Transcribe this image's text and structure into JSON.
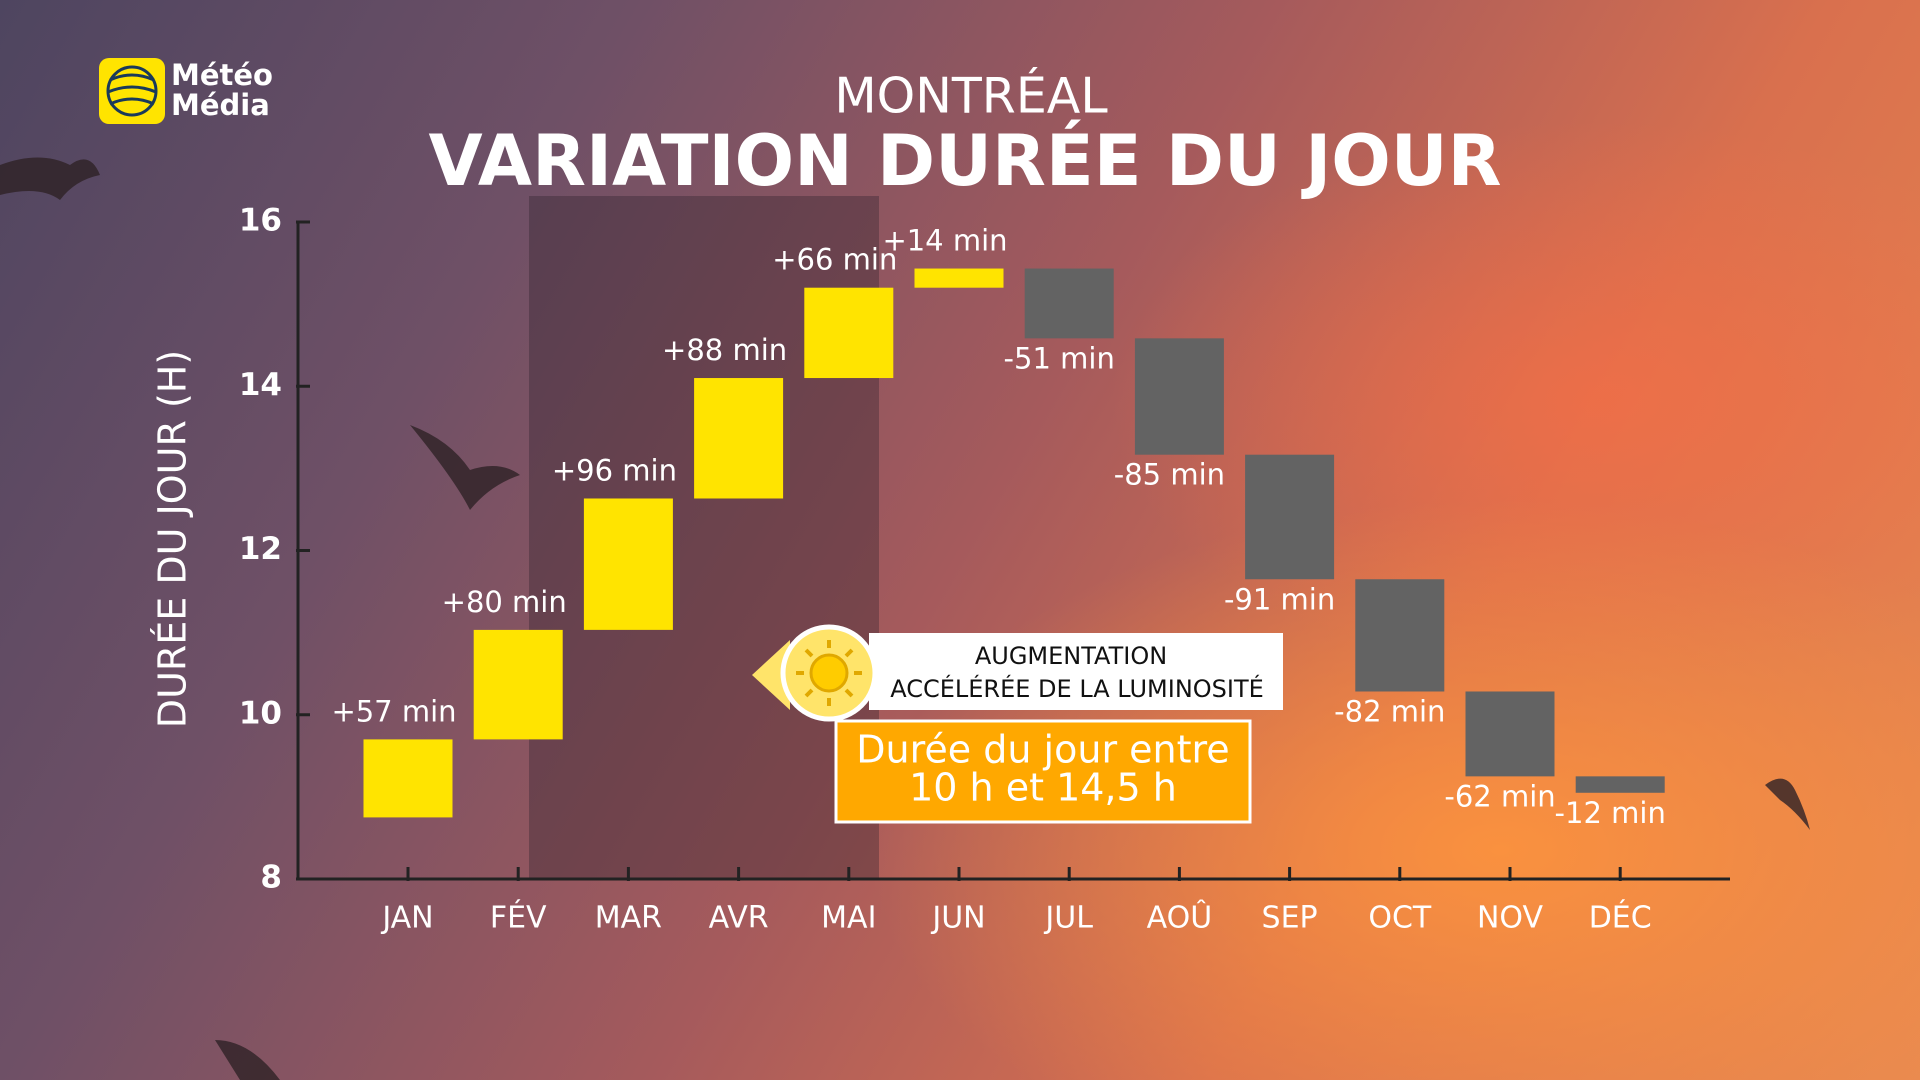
{
  "logo": {
    "lines": [
      "Météo",
      "Média"
    ]
  },
  "chart_data": {
    "type": "waterfall",
    "subtitle": "MONTRÉAL",
    "title": "VARIATION DURÉE DU JOUR",
    "ylabel": "DURÉE DU JOUR (H)",
    "categories": [
      "JAN",
      "FÉV",
      "MAR",
      "AVR",
      "MAI",
      "JUN",
      "JUL",
      "AOÛ",
      "SEP",
      "OCT",
      "NOV",
      "DÉC"
    ],
    "base": 8.75,
    "values": [
      0.95,
      1.3333,
      1.6,
      1.4667,
      1.1,
      0.2333,
      -0.85,
      -1.4167,
      -1.5167,
      -1.3667,
      -1.0333,
      -0.2
    ],
    "value_labels": [
      "+57 min",
      "+80 min",
      "+96 min",
      "+88 min",
      "+66 min",
      "+14 min",
      "-51 min",
      "-85 min",
      "-91 min",
      "-82 min",
      "-62 min",
      "-12 min"
    ],
    "increase_color": "#ffe400",
    "decrease_color": "#636363",
    "ylim": [
      8,
      16
    ],
    "yticks": [
      8,
      10,
      12,
      14,
      16
    ],
    "annotation": {
      "title_lines": [
        "AUGMENTATION",
        "ACCÉLÉRÉE DE LA LUMINOSITÉ"
      ],
      "box_lines": [
        "Durée du jour entre",
        "10 h et 14,5 h"
      ]
    }
  }
}
